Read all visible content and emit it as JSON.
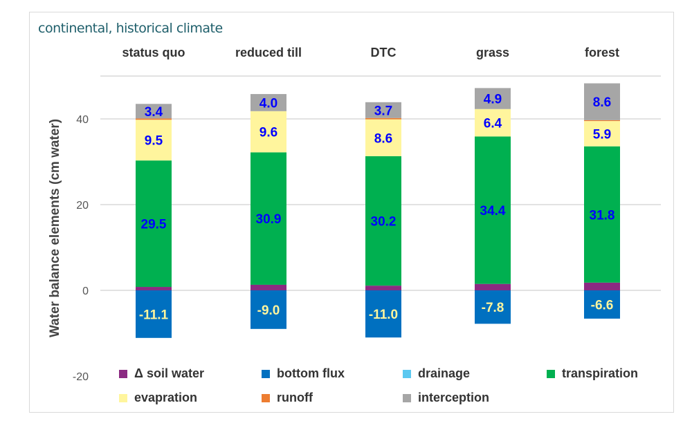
{
  "chart_data": {
    "type": "stacked-bar",
    "title": "continental, historical climate",
    "ylabel": "Water balance elements (cm water)",
    "ylim": [
      -20,
      50
    ],
    "yticks": [
      40,
      20,
      0,
      -20
    ],
    "grid": true,
    "legend_placement": "bottom",
    "categories": [
      "status quo",
      "reduced till",
      "DTC",
      "grass",
      "forest"
    ],
    "series": [
      {
        "name": "Δ soil water",
        "color": "#8b2a82",
        "values": [
          0.8,
          1.3,
          1.1,
          1.5,
          1.8
        ],
        "labeled": false
      },
      {
        "name": "bottom flux",
        "color": "#0070c0",
        "values": [
          -11.1,
          -9.0,
          -11.0,
          -7.8,
          -6.6
        ],
        "labeled": true
      },
      {
        "name": "drainage",
        "color": "#5bc8f0",
        "values": [
          0,
          0,
          0,
          0,
          0
        ],
        "labeled": false
      },
      {
        "name": "transpiration",
        "color": "#00b050",
        "values": [
          29.5,
          30.9,
          30.2,
          34.4,
          31.8
        ],
        "labeled": true
      },
      {
        "name": "evapration",
        "color": "#fff59d",
        "values": [
          9.5,
          9.6,
          8.6,
          6.4,
          5.9
        ],
        "labeled": true
      },
      {
        "name": "runoff",
        "color": "#ed7d31",
        "values": [
          0.3,
          0,
          0.3,
          0,
          0.2
        ],
        "labeled": false
      },
      {
        "name": "interception",
        "color": "#a6a6a6",
        "values": [
          3.4,
          4.0,
          3.7,
          4.9,
          8.6
        ],
        "labeled": true
      }
    ],
    "label_colors": {
      "positive": "#0000ff",
      "negative": "#fff59d"
    }
  }
}
